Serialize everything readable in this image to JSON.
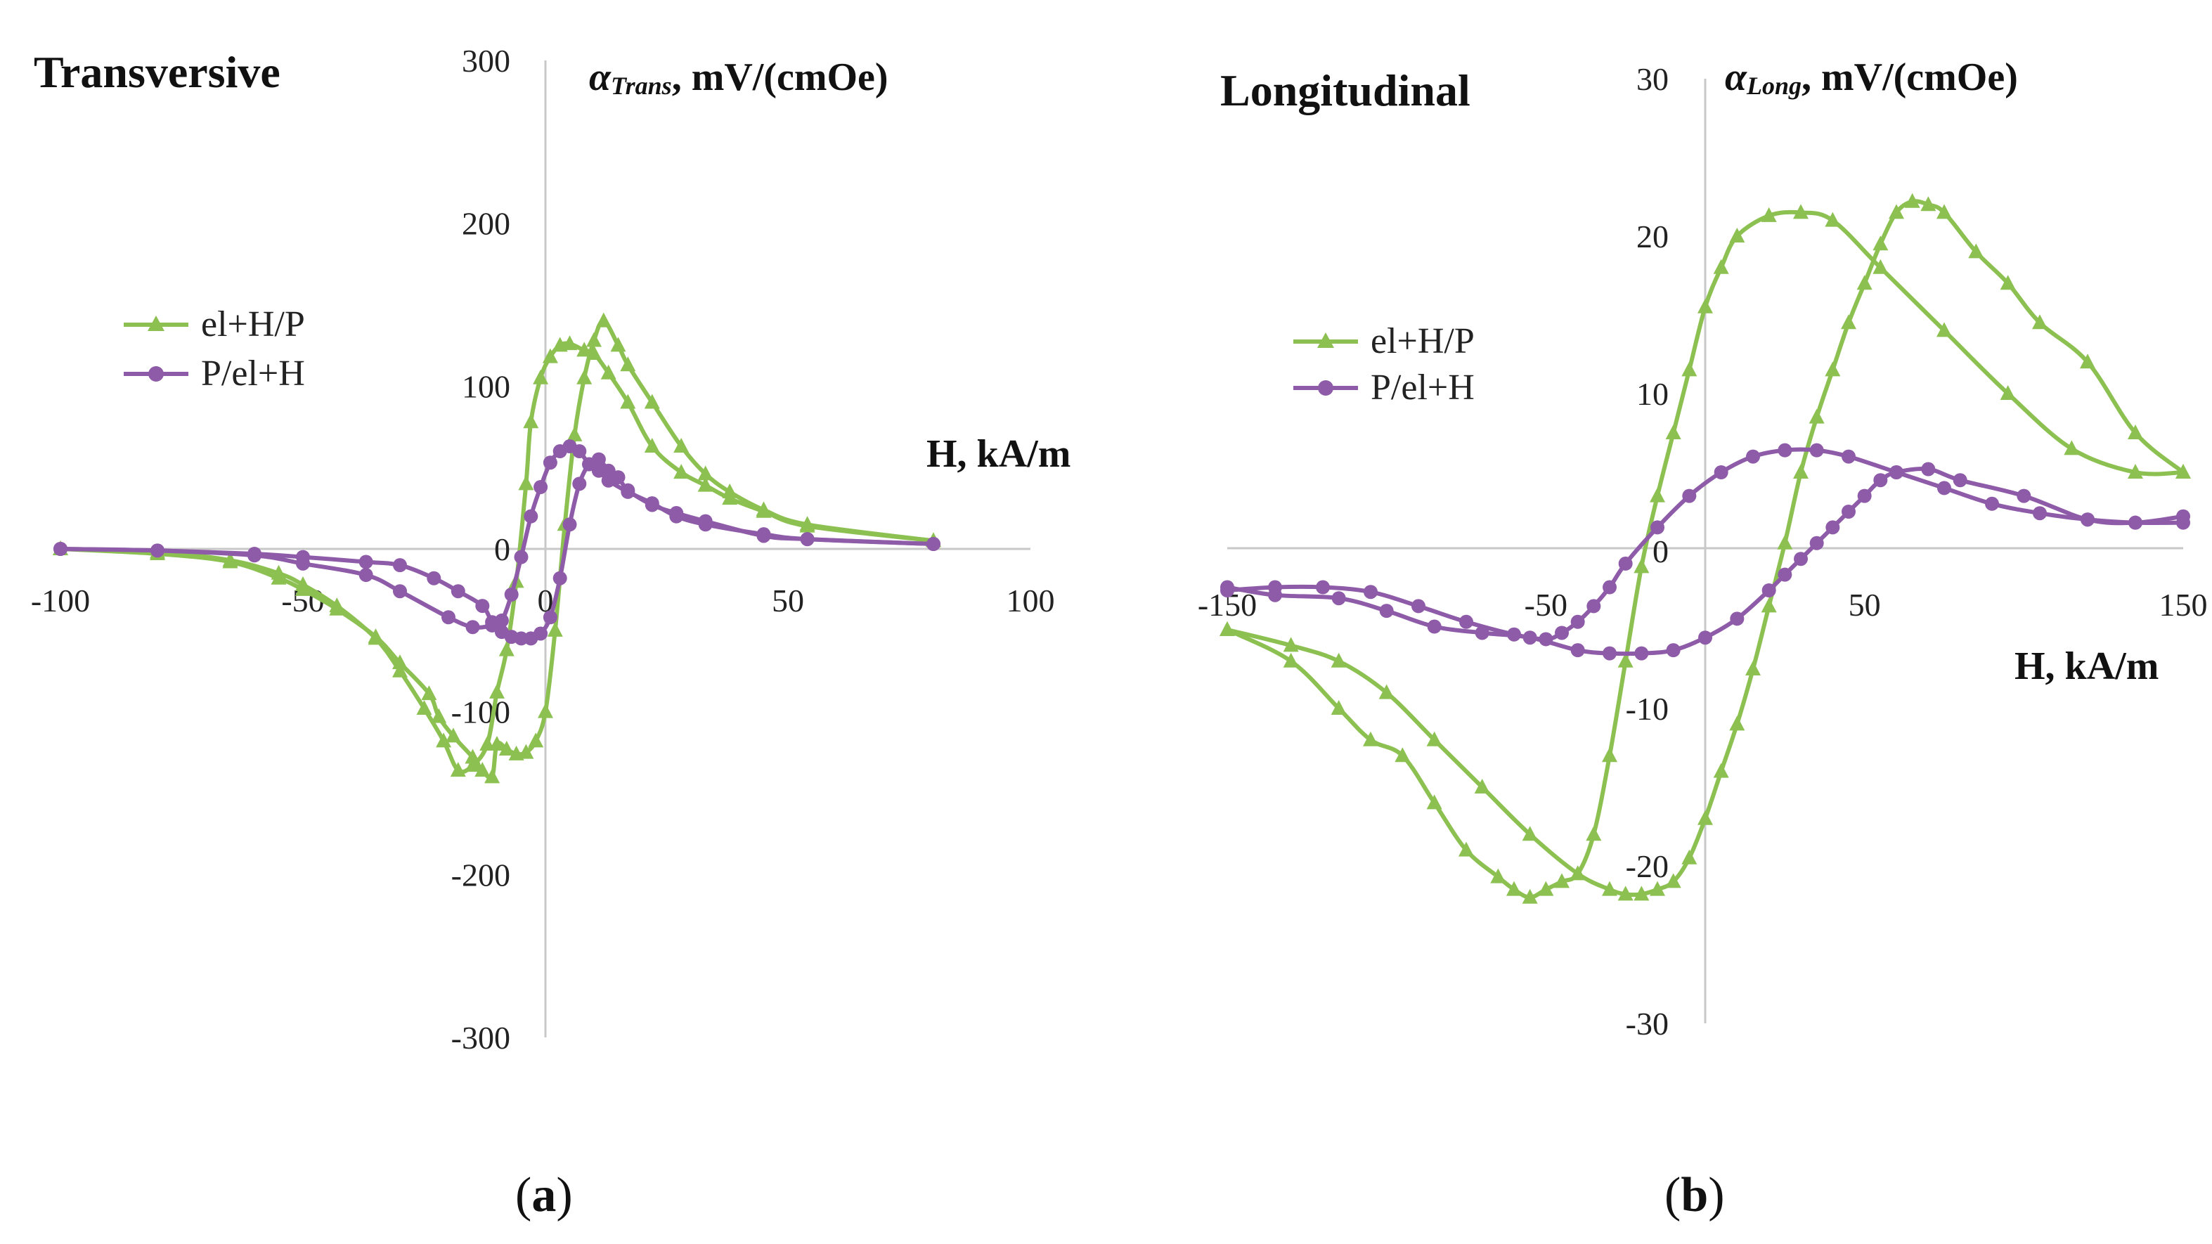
{
  "colors": {
    "green": "#8cc152",
    "purple": "#8e5ba8"
  },
  "chart_data": [
    {
      "type": "line",
      "panel": "a",
      "title": "Transversive",
      "caption_letter": "a",
      "xlabel": "H, kA/m",
      "ylabel": {
        "symbol": "α",
        "sub": "Trans",
        "unit": ", mV/(cmOe)"
      },
      "xlim": [
        -100,
        100
      ],
      "ylim": [
        -300,
        300
      ],
      "xticks": [
        -100,
        -50,
        0,
        50,
        100
      ],
      "yticks": [
        -300,
        -200,
        -100,
        0,
        100,
        200,
        300
      ],
      "xtick_labels": [
        "-100",
        "-50",
        "0",
        "50",
        "100"
      ],
      "ytick_labels": [
        "-300",
        "-200",
        "-100",
        "0",
        "100",
        "200",
        "300"
      ],
      "legend": [
        "el+H/P",
        "P/el+H"
      ],
      "series": [
        {
          "name": "el+H/P",
          "color": "#8cc152",
          "marker": "triangle",
          "x": [
            80,
            54,
            45,
            38,
            33,
            28,
            22,
            17,
            15,
            12,
            10,
            8,
            6,
            4,
            2,
            0,
            -2,
            -4,
            -6,
            -8,
            -10,
            -11,
            -13,
            -15,
            -19,
            -22,
            -24,
            -30,
            -35,
            -43,
            -50,
            -55,
            -65,
            -80,
            -100
          ],
          "y": [
            5,
            15,
            24,
            35,
            46,
            63,
            90,
            113,
            125,
            140,
            128,
            105,
            70,
            15,
            -50,
            -100,
            -118,
            -125,
            -126,
            -123,
            -120,
            -140,
            -136,
            -128,
            -115,
            -103,
            -89,
            -70,
            -54,
            -37,
            -25,
            -18,
            -8,
            -3,
            0
          ]
        },
        {
          "name": "el+H/P",
          "color": "#8cc152",
          "marker": "triangle",
          "x": [
            80,
            54,
            45,
            38,
            33,
            28,
            22,
            17,
            13,
            10,
            8,
            5,
            3,
            1,
            -1,
            -3,
            -4,
            -6,
            -8,
            -10,
            -12,
            -15,
            -18,
            -21,
            -25,
            -30,
            -35,
            -43,
            -50,
            -55,
            -65,
            -80,
            -100
          ],
          "y": [
            5,
            14,
            23,
            31,
            39,
            47,
            63,
            90,
            108,
            120,
            122,
            126,
            125,
            118,
            105,
            78,
            40,
            -20,
            -62,
            -88,
            -120,
            -133,
            -136,
            -118,
            -98,
            -75,
            -55,
            -35,
            -22,
            -15,
            -7,
            -2,
            0
          ]
        },
        {
          "name": "P/el+H",
          "color": "#8e5ba8",
          "marker": "circle",
          "x": [
            80,
            54,
            45,
            33,
            27,
            22,
            17,
            15,
            13,
            11,
            9,
            7,
            5,
            3,
            1,
            -1,
            -3,
            -5,
            -7,
            -9,
            -11,
            -13,
            -18,
            -23,
            -30,
            -37,
            -50,
            -60,
            -80,
            -100
          ],
          "y": [
            3,
            6,
            8,
            17,
            22,
            27,
            36,
            44,
            48,
            55,
            52,
            40,
            15,
            -18,
            -42,
            -52,
            -55,
            -55,
            -54,
            -51,
            -45,
            -35,
            -26,
            -18,
            -10,
            -8,
            -5,
            -3,
            -1,
            0
          ]
        },
        {
          "name": "P/el+H",
          "color": "#8e5ba8",
          "marker": "circle",
          "x": [
            80,
            54,
            45,
            33,
            27,
            22,
            17,
            13,
            11,
            9,
            7,
            5,
            3,
            1,
            -1,
            -3,
            -5,
            -7,
            -9,
            -11,
            -15,
            -20,
            -30,
            -37,
            -50,
            -60,
            -80,
            -100
          ],
          "y": [
            3,
            6,
            9,
            15,
            20,
            28,
            35,
            42,
            48,
            52,
            60,
            63,
            60,
            53,
            38,
            20,
            -5,
            -28,
            -44,
            -47,
            -48,
            -42,
            -26,
            -16,
            -9,
            -4,
            -1,
            0
          ]
        }
      ]
    },
    {
      "type": "line",
      "panel": "b",
      "title": "Longitudinal",
      "caption_letter": "b",
      "xlabel": "H, kA/m",
      "ylabel": {
        "symbol": "α",
        "sub": "Long",
        "unit": ", mV/(cmOe)"
      },
      "xlim": [
        -150,
        150
      ],
      "ylim": [
        -30,
        30
      ],
      "xticks": [
        -150,
        -50,
        50,
        150
      ],
      "yticks": [
        -30,
        -20,
        -10,
        0,
        10,
        20,
        30
      ],
      "xtick_labels": [
        "-150",
        "-50",
        "50",
        "150"
      ],
      "ytick_labels": [
        "-30",
        "-20",
        "-10",
        "0",
        "10",
        "20",
        "30"
      ],
      "legend": [
        "el+H/P",
        "P/el+H"
      ],
      "series": [
        {
          "name": "el+H/P",
          "color": "#8cc152",
          "marker": "triangle",
          "x": [
            -150,
            -130,
            -115,
            -105,
            -95,
            -85,
            -75,
            -65,
            -60,
            -55,
            -50,
            -45,
            -40,
            -35,
            -30,
            -25,
            -20,
            -15,
            -10,
            -5,
            0,
            5,
            10,
            20,
            30,
            40,
            55,
            75,
            95,
            115,
            135,
            150
          ],
          "y": [
            -5,
            -7,
            -10,
            -12,
            -13,
            -16,
            -19,
            -20.7,
            -21.5,
            -22,
            -21.5,
            -21,
            -20.5,
            -18,
            -13,
            -7,
            -1,
            3.5,
            7.5,
            11.5,
            15.5,
            18,
            20,
            21.3,
            21.5,
            21,
            18,
            14,
            10,
            6.5,
            5,
            5
          ]
        },
        {
          "name": "el+H/P",
          "color": "#8cc152",
          "marker": "triangle",
          "x": [
            -150,
            -130,
            -115,
            -100,
            -85,
            -70,
            -55,
            -40,
            -30,
            -25,
            -20,
            -15,
            -10,
            -5,
            0,
            5,
            10,
            15,
            20,
            25,
            30,
            35,
            40,
            45,
            50,
            55,
            60,
            65,
            70,
            75,
            85,
            95,
            105,
            120,
            135,
            150
          ],
          "y": [
            -5,
            -6,
            -7,
            -9,
            -12,
            -15,
            -18,
            -20.5,
            -21.5,
            -21.8,
            -21.8,
            -21.5,
            -21,
            -19.5,
            -17,
            -14,
            -11,
            -7.5,
            -3.5,
            0.5,
            5,
            8.5,
            11.5,
            14.5,
            17,
            19.5,
            21.5,
            22.2,
            22,
            21.5,
            19,
            17,
            14.5,
            12,
            7.5,
            5
          ]
        },
        {
          "name": "P/el+H",
          "color": "#8e5ba8",
          "marker": "circle",
          "x": [
            -150,
            -135,
            -120,
            -105,
            -90,
            -75,
            -60,
            -50,
            -45,
            -40,
            -35,
            -30,
            -25,
            -15,
            -5,
            5,
            15,
            25,
            35,
            45,
            60,
            75,
            90,
            105,
            120,
            135,
            150
          ],
          "y": [
            -2.5,
            -2.3,
            -2.3,
            -2.6,
            -3.5,
            -4.5,
            -5.3,
            -5.6,
            -5.2,
            -4.5,
            -3.5,
            -2.3,
            -0.8,
            1.5,
            3.5,
            5,
            6,
            6.4,
            6.4,
            6,
            5,
            4,
            3,
            2.4,
            2,
            1.8,
            1.8
          ]
        },
        {
          "name": "P/el+H",
          "color": "#8e5ba8",
          "marker": "circle",
          "x": [
            -150,
            -135,
            -115,
            -100,
            -85,
            -70,
            -55,
            -40,
            -30,
            -20,
            -10,
            0,
            10,
            20,
            25,
            30,
            35,
            40,
            45,
            50,
            55,
            60,
            70,
            80,
            100,
            120,
            135,
            150
          ],
          "y": [
            -2.3,
            -2.8,
            -3,
            -3.8,
            -4.8,
            -5.2,
            -5.5,
            -6.3,
            -6.5,
            -6.5,
            -6.3,
            -5.5,
            -4.3,
            -2.5,
            -1.5,
            -0.5,
            0.5,
            1.5,
            2.5,
            3.5,
            4.5,
            5,
            5.2,
            4.5,
            3.5,
            2,
            1.8,
            2.2
          ]
        }
      ]
    }
  ]
}
